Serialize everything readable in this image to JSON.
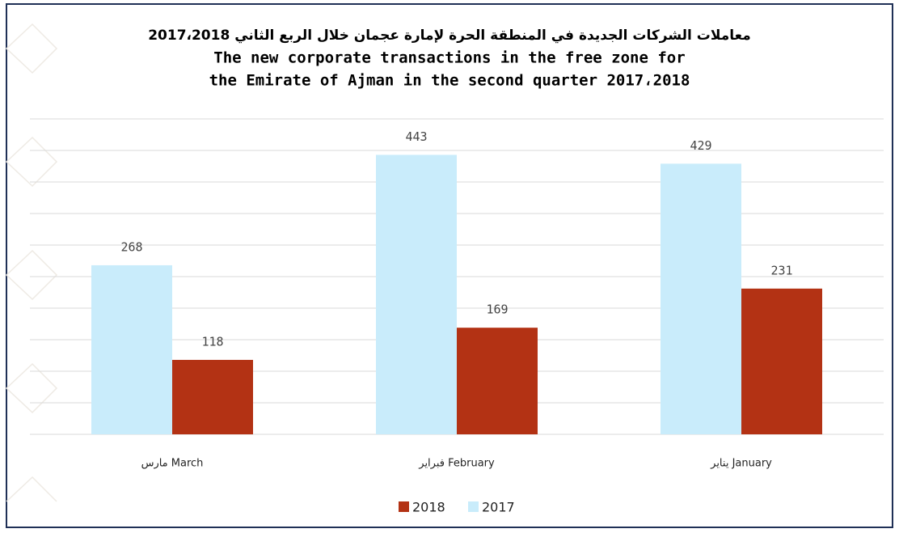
{
  "chart_data": {
    "type": "bar",
    "title": [
      "معاملات الشركات الجديدة في المنطقة الحرة لإمارة عجمان خلال الربع الثاني 2017،2018",
      "The new corporate transactions in the free zone for",
      "the Emirate of Ajman in the second quarter 2017،2018"
    ],
    "categories": [
      "مارس March",
      "فبراير February",
      "يناير January"
    ],
    "series": [
      {
        "name": "2017",
        "color": "#c9ecfb",
        "values": [
          268,
          443,
          429
        ]
      },
      {
        "name": "2018",
        "color": "#b33214",
        "values": [
          118,
          169,
          231
        ]
      }
    ],
    "legend_order": [
      "2018",
      "2017"
    ],
    "ylim": [
      0,
      500
    ],
    "yticks": [
      0,
      50,
      100,
      150,
      200,
      250,
      300,
      350,
      400,
      450,
      500
    ],
    "grid": true
  }
}
